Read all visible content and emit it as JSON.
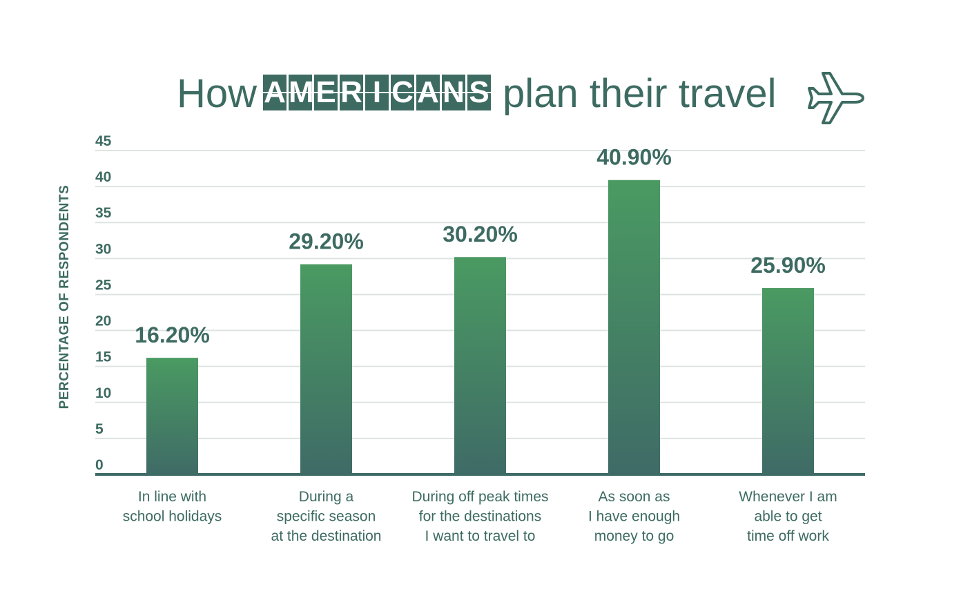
{
  "header": {
    "title_pre": "How",
    "title_badge_letters": [
      "A",
      "M",
      "E",
      "R",
      "I",
      "C",
      "A",
      "N",
      "S"
    ],
    "title_post": "plan their travel",
    "icon": "airplane-icon"
  },
  "colors": {
    "text": "#3d6b62",
    "bar_top": "#4a9a62",
    "bar_bottom": "#3f6b66",
    "grid": "#dde3e1",
    "axis": "#3f6b66"
  },
  "chart_data": {
    "type": "bar",
    "title": "How AMERICANS plan their travel",
    "xlabel": "",
    "ylabel": "PERCENTAGE OF RESPONDENTS",
    "ylim": [
      0,
      45
    ],
    "yticks": [
      0,
      5,
      10,
      15,
      20,
      25,
      30,
      35,
      40,
      45
    ],
    "grid": true,
    "categories": [
      [
        "In line with",
        "school holidays"
      ],
      [
        "During a",
        "specific season",
        "at the destination"
      ],
      [
        "During off peak times",
        "for the destinations",
        "I want to travel to"
      ],
      [
        "As soon as",
        "I have enough",
        "money to go"
      ],
      [
        "Whenever I am",
        "able to get",
        "time off work"
      ]
    ],
    "values": [
      16.2,
      29.2,
      30.2,
      40.9,
      25.9
    ],
    "data_labels": [
      "16.20%",
      "29.20%",
      "30.20%",
      "40.90%",
      "25.90%"
    ]
  }
}
